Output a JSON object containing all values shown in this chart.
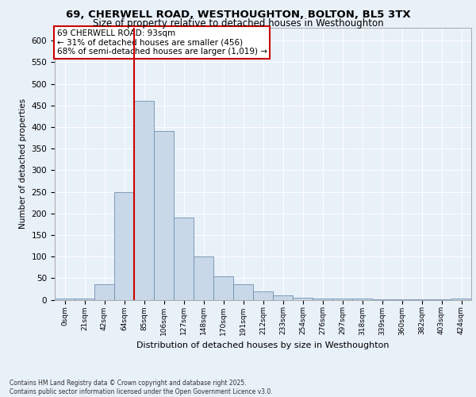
{
  "title_line1": "69, CHERWELL ROAD, WESTHOUGHTON, BOLTON, BL5 3TX",
  "title_line2": "Size of property relative to detached houses in Westhoughton",
  "xlabel": "Distribution of detached houses by size in Westhoughton",
  "ylabel": "Number of detached properties",
  "bin_labels": [
    "0sqm",
    "21sqm",
    "42sqm",
    "64sqm",
    "85sqm",
    "106sqm",
    "127sqm",
    "148sqm",
    "170sqm",
    "191sqm",
    "212sqm",
    "233sqm",
    "254sqm",
    "276sqm",
    "297sqm",
    "318sqm",
    "339sqm",
    "360sqm",
    "382sqm",
    "403sqm",
    "424sqm"
  ],
  "bar_values": [
    2,
    2,
    35,
    250,
    460,
    390,
    190,
    100,
    55,
    35,
    20,
    10,
    5,
    2,
    2,
    3,
    1,
    1,
    1,
    1,
    3
  ],
  "bar_color": "#c8d8e8",
  "bar_edge_color": "#7090b0",
  "vline_color": "#cc0000",
  "vline_x": 3.5,
  "annotation_text": "69 CHERWELL ROAD: 93sqm\n← 31% of detached houses are smaller (456)\n68% of semi-detached houses are larger (1,019) →",
  "annotation_box_color": "#ffffff",
  "annotation_box_edge_color": "#cc0000",
  "ylim": [
    0,
    630
  ],
  "yticks": [
    0,
    50,
    100,
    150,
    200,
    250,
    300,
    350,
    400,
    450,
    500,
    550,
    600
  ],
  "footnote": "Contains HM Land Registry data © Crown copyright and database right 2025.\nContains public sector information licensed under the Open Government Licence v3.0.",
  "bg_color": "#e8f0f8",
  "plot_bg_color": "#e8f0f8",
  "grid_color": "#ffffff",
  "title1_fontsize": 9.5,
  "title2_fontsize": 8.5,
  "ylabel_fontsize": 7.5,
  "xlabel_fontsize": 8,
  "tick_fontsize": 7.5,
  "xtick_fontsize": 6.5,
  "annot_fontsize": 7.5,
  "footnote_fontsize": 5.5
}
